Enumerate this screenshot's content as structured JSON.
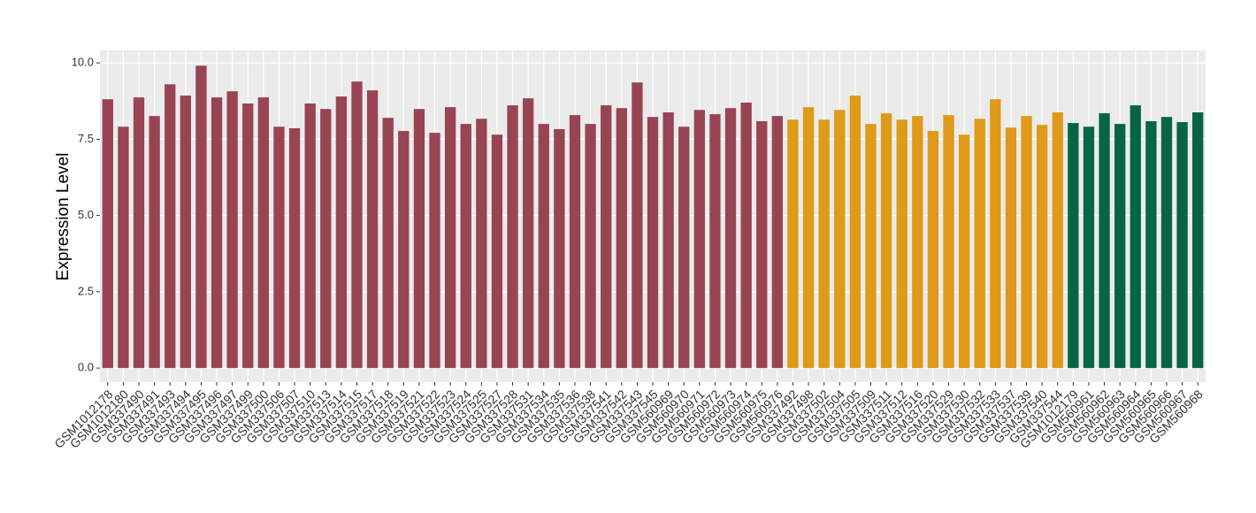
{
  "chart_data": {
    "type": "bar",
    "y_label": "Expression Level",
    "ylim": [
      -0.46,
      10.41
    ],
    "yticks": [
      {
        "value": 0,
        "label": "0.0"
      },
      {
        "value": 2.5,
        "label": "2.5"
      },
      {
        "value": 5,
        "label": "5.0"
      },
      {
        "value": 7.5,
        "label": "7.5"
      },
      {
        "value": 10,
        "label": "10.0"
      }
    ],
    "grid": true,
    "groups": [
      {
        "color": "#994455",
        "categories": [
          "GSM1012178",
          "GSM1012180",
          "GSM337490",
          "GSM337491",
          "GSM337493",
          "GSM337494",
          "GSM337495",
          "GSM337496",
          "GSM337497",
          "GSM337499",
          "GSM337500",
          "GSM337506",
          "GSM337507",
          "GSM337510",
          "GSM337513",
          "GSM337514",
          "GSM337515",
          "GSM337517",
          "GSM337518",
          "GSM337519",
          "GSM337521",
          "GSM337522",
          "GSM337523",
          "GSM337524",
          "GSM337525",
          "GSM337527",
          "GSM337528",
          "GSM337531",
          "GSM337534",
          "GSM337535",
          "GSM337536",
          "GSM337538",
          "GSM337541",
          "GSM337542",
          "GSM337543",
          "GSM337545",
          "GSM560969",
          "GSM560970",
          "GSM560971",
          "GSM560972",
          "GSM560973",
          "GSM560974",
          "GSM560975",
          "GSM560976"
        ],
        "values": [
          8.81,
          7.91,
          8.87,
          8.26,
          9.3,
          8.93,
          9.91,
          8.87,
          9.07,
          8.67,
          8.87,
          7.91,
          7.86,
          8.67,
          8.49,
          8.9,
          9.39,
          9.1,
          8.2,
          7.77,
          8.49,
          7.71,
          8.55,
          8.0,
          8.17,
          7.65,
          8.61,
          8.84,
          8.0,
          7.83,
          8.29,
          8.0,
          8.61,
          8.52,
          9.36,
          8.23,
          8.38,
          7.91,
          8.46,
          8.32,
          8.52,
          8.7,
          8.09,
          8.26
        ]
      },
      {
        "color": "#DE9A18",
        "categories": [
          "GSM337492",
          "GSM337498",
          "GSM337502",
          "GSM337504",
          "GSM337505",
          "GSM337509",
          "GSM337511",
          "GSM337512",
          "GSM337516",
          "GSM337520",
          "GSM337529",
          "GSM337530",
          "GSM337532",
          "GSM337533",
          "GSM337537",
          "GSM337539",
          "GSM337540",
          "GSM337544"
        ],
        "values": [
          8.14,
          8.55,
          8.14,
          8.46,
          8.93,
          8.0,
          8.35,
          8.14,
          8.26,
          7.77,
          8.29,
          7.65,
          8.17,
          8.81,
          7.88,
          8.26,
          7.97,
          8.38
        ]
      },
      {
        "color": "#076642",
        "categories": [
          "GSM1012179",
          "GSM560961",
          "GSM560962",
          "GSM560963",
          "GSM560964",
          "GSM560965",
          "GSM560966",
          "GSM560967",
          "GSM560968"
        ],
        "values": [
          8.03,
          7.91,
          8.35,
          8.0,
          8.61,
          8.09,
          8.23,
          8.06,
          8.38
        ]
      }
    ]
  }
}
